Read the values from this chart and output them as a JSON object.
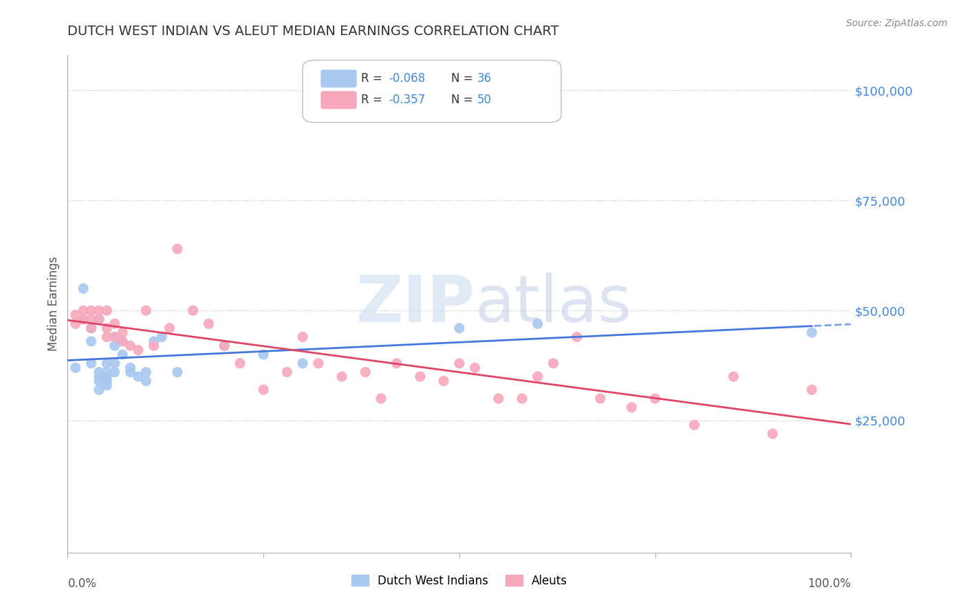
{
  "title": "DUTCH WEST INDIAN VS ALEUT MEDIAN EARNINGS CORRELATION CHART",
  "source": "Source: ZipAtlas.com",
  "ylabel": "Median Earnings",
  "ytick_labels": [
    "$25,000",
    "$50,000",
    "$75,000",
    "$100,000"
  ],
  "ytick_values": [
    25000,
    50000,
    75000,
    100000
  ],
  "ylim": [
    -5000,
    108000
  ],
  "xlim": [
    0,
    1.0
  ],
  "watermark_zip": "ZIP",
  "watermark_atlas": "atlas",
  "series1_label": "Dutch West Indians",
  "series2_label": "Aleuts",
  "series1_color": "#a8c8f0",
  "series2_color": "#f5a8bc",
  "line1_color": "#4477dd",
  "line2_color": "#dd4466",
  "title_color": "#333333",
  "axis_label_color": "#4488dd",
  "grid_color": "#cccccc",
  "background_color": "#ffffff",
  "dutch_x": [
    0.01,
    0.02,
    0.02,
    0.03,
    0.03,
    0.03,
    0.04,
    0.04,
    0.04,
    0.04,
    0.04,
    0.05,
    0.05,
    0.05,
    0.05,
    0.05,
    0.06,
    0.06,
    0.06,
    0.06,
    0.07,
    0.07,
    0.08,
    0.08,
    0.09,
    0.1,
    0.1,
    0.11,
    0.12,
    0.14,
    0.2,
    0.25,
    0.3,
    0.5,
    0.6,
    0.95
  ],
  "dutch_y": [
    37000,
    48000,
    55000,
    43000,
    46000,
    38000,
    48000,
    36000,
    35000,
    34000,
    32000,
    38000,
    36000,
    35000,
    34000,
    33000,
    44000,
    42000,
    38000,
    36000,
    43000,
    40000,
    37000,
    36000,
    35000,
    36000,
    34000,
    43000,
    44000,
    36000,
    42000,
    40000,
    38000,
    46000,
    47000,
    45000
  ],
  "aleut_x": [
    0.01,
    0.01,
    0.02,
    0.02,
    0.03,
    0.03,
    0.03,
    0.04,
    0.04,
    0.05,
    0.05,
    0.05,
    0.06,
    0.06,
    0.07,
    0.07,
    0.08,
    0.09,
    0.1,
    0.11,
    0.13,
    0.14,
    0.16,
    0.18,
    0.2,
    0.22,
    0.25,
    0.28,
    0.3,
    0.32,
    0.35,
    0.38,
    0.4,
    0.42,
    0.45,
    0.48,
    0.5,
    0.52,
    0.55,
    0.58,
    0.6,
    0.62,
    0.65,
    0.68,
    0.72,
    0.75,
    0.8,
    0.85,
    0.9,
    0.95
  ],
  "aleut_y": [
    49000,
    47000,
    50000,
    48000,
    50000,
    48000,
    46000,
    50000,
    48000,
    50000,
    46000,
    44000,
    47000,
    44000,
    45000,
    43000,
    42000,
    41000,
    50000,
    42000,
    46000,
    64000,
    50000,
    47000,
    42000,
    38000,
    32000,
    36000,
    44000,
    38000,
    35000,
    36000,
    30000,
    38000,
    35000,
    34000,
    38000,
    37000,
    30000,
    30000,
    35000,
    38000,
    44000,
    30000,
    28000,
    30000,
    24000,
    35000,
    22000,
    32000
  ]
}
